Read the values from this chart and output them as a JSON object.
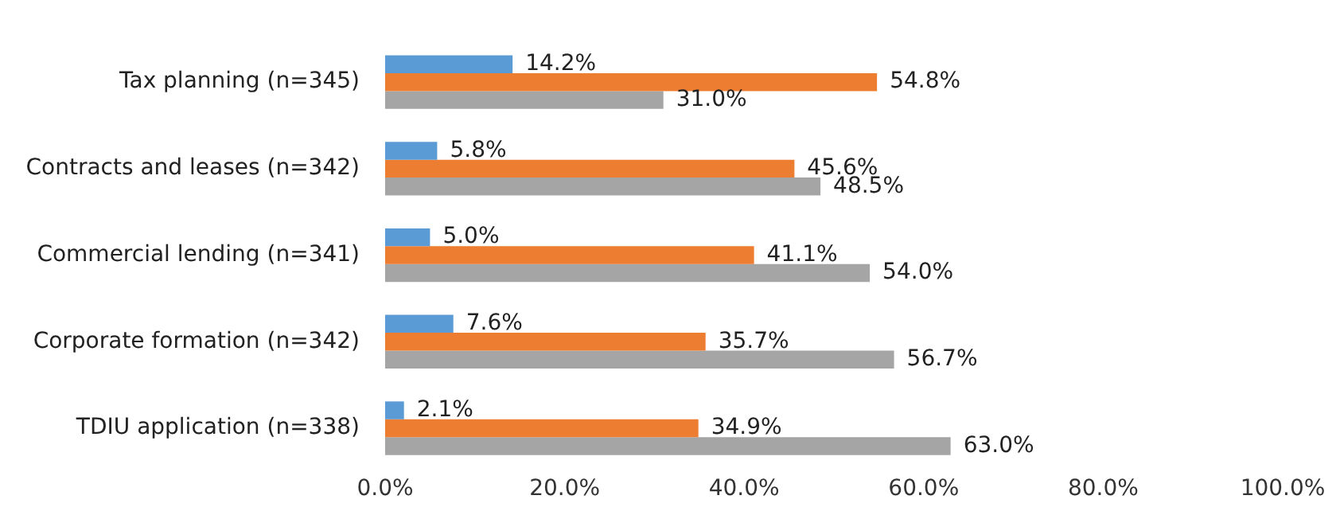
{
  "chart_data": {
    "type": "bar",
    "orientation": "horizontal",
    "categories": [
      "Tax planning (n=345)",
      "Contracts and leases (n=342)",
      "Commercial lending (n=341)",
      "Corporate formation (n=342)",
      "TDIU application (n=338)"
    ],
    "series": [
      {
        "color": "#5b9bd5",
        "values": [
          14.2,
          5.8,
          5.0,
          7.6,
          2.1
        ],
        "value_labels": [
          "14.2%",
          "5.8%",
          "5.0%",
          "7.6%",
          "2.1%"
        ]
      },
      {
        "color": "#ed7d31",
        "values": [
          54.8,
          45.6,
          41.1,
          35.7,
          34.9
        ],
        "value_labels": [
          "54.8%",
          "45.6%",
          "41.1%",
          "35.7%",
          "34.9%"
        ]
      },
      {
        "color": "#a5a5a5",
        "values": [
          31.0,
          48.5,
          54.0,
          56.7,
          63.0
        ],
        "value_labels": [
          "31.0%",
          "48.5%",
          "54.0%",
          "56.7%",
          "63.0%"
        ]
      }
    ],
    "xlim": [
      0,
      100
    ],
    "xticks": [
      {
        "value": 0,
        "label": "0.0%"
      },
      {
        "value": 20,
        "label": "20.0%"
      },
      {
        "value": 40,
        "label": "40.0%"
      },
      {
        "value": 60,
        "label": "60.0%"
      },
      {
        "value": 80,
        "label": "80.0%"
      },
      {
        "value": 100,
        "label": "100.0%"
      }
    ],
    "grid": false,
    "legend": false
  }
}
